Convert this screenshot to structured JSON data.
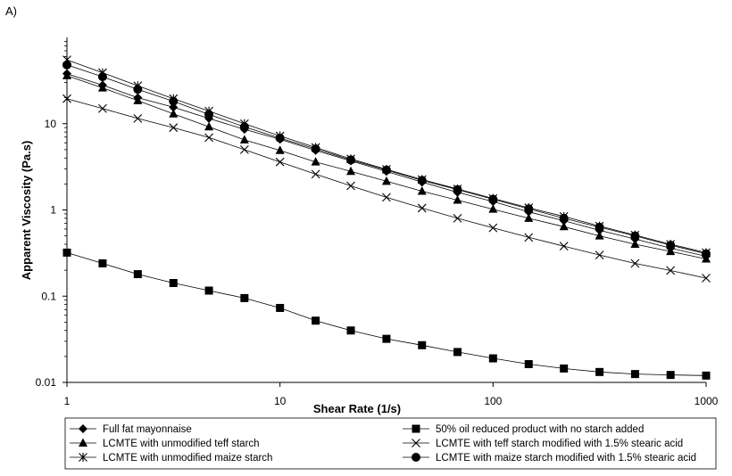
{
  "panel_label": "A)",
  "chart_data": {
    "type": "line",
    "xlabel": "Shear Rate (1/s)",
    "ylabel": "Apparent Viscosity (Pa.s)",
    "xscale": "log",
    "yscale": "log",
    "xlim": [
      1,
      1000
    ],
    "ylim": [
      0.01,
      100
    ],
    "xticks": [
      1,
      10,
      100,
      1000
    ],
    "xtick_labels": [
      "1",
      "10",
      "100",
      "1000"
    ],
    "yticks": [
      0.01,
      0.1,
      1,
      10
    ],
    "ytick_labels": [
      "0.01",
      "0.1",
      "1",
      "10"
    ],
    "grid": false,
    "legend_position": "bottom",
    "x": [
      1,
      1.47,
      2.15,
      3.16,
      4.64,
      6.81,
      10,
      14.7,
      21.5,
      31.6,
      46.4,
      68.1,
      100,
      147,
      215,
      316,
      464,
      681,
      1000
    ],
    "series": [
      {
        "name": "Full fat mayonnaise",
        "marker": "diamond",
        "values": [
          38,
          28,
          20,
          15.5,
          11.5,
          8.6,
          6.6,
          4.9,
          3.7,
          2.8,
          2.1,
          1.6,
          1.25,
          0.95,
          0.75,
          0.58,
          0.46,
          0.36,
          0.29
        ]
      },
      {
        "name": "50% oil reduced product with no starch added",
        "marker": "square",
        "values": [
          0.32,
          0.24,
          0.18,
          0.142,
          0.116,
          0.095,
          0.073,
          0.052,
          0.04,
          0.032,
          0.027,
          0.0225,
          0.019,
          0.0163,
          0.0145,
          0.0132,
          0.0125,
          0.0122,
          0.012
        ]
      },
      {
        "name": "LCMTE with unmodified teff starch",
        "marker": "triangle",
        "values": [
          36,
          26,
          18.5,
          13,
          9.2,
          6.5,
          4.9,
          3.6,
          2.8,
          2.15,
          1.65,
          1.3,
          1.02,
          0.8,
          0.64,
          0.5,
          0.4,
          0.33,
          0.27
        ]
      },
      {
        "name": "LCMTE with teff starch modified with 1.5% stearic acid",
        "marker": "x",
        "values": [
          19.5,
          15,
          11.5,
          9,
          6.9,
          5,
          3.6,
          2.6,
          1.9,
          1.4,
          1.05,
          0.8,
          0.62,
          0.48,
          0.38,
          0.3,
          0.24,
          0.198,
          0.162
        ]
      },
      {
        "name": "LCMTE with unmodified maize starch",
        "marker": "star",
        "values": [
          55,
          39,
          27.5,
          19.5,
          14,
          10,
          7.2,
          5.3,
          3.9,
          2.95,
          2.25,
          1.75,
          1.36,
          1.06,
          0.84,
          0.65,
          0.51,
          0.4,
          0.32
        ]
      },
      {
        "name": "LCMTE with maize starch modified with 1.5% stearic acid",
        "marker": "circle",
        "values": [
          48,
          35,
          25,
          18.2,
          12.8,
          9.2,
          6.8,
          5.1,
          3.8,
          2.9,
          2.2,
          1.72,
          1.33,
          1.03,
          0.8,
          0.63,
          0.5,
          0.39,
          0.31
        ]
      }
    ]
  }
}
